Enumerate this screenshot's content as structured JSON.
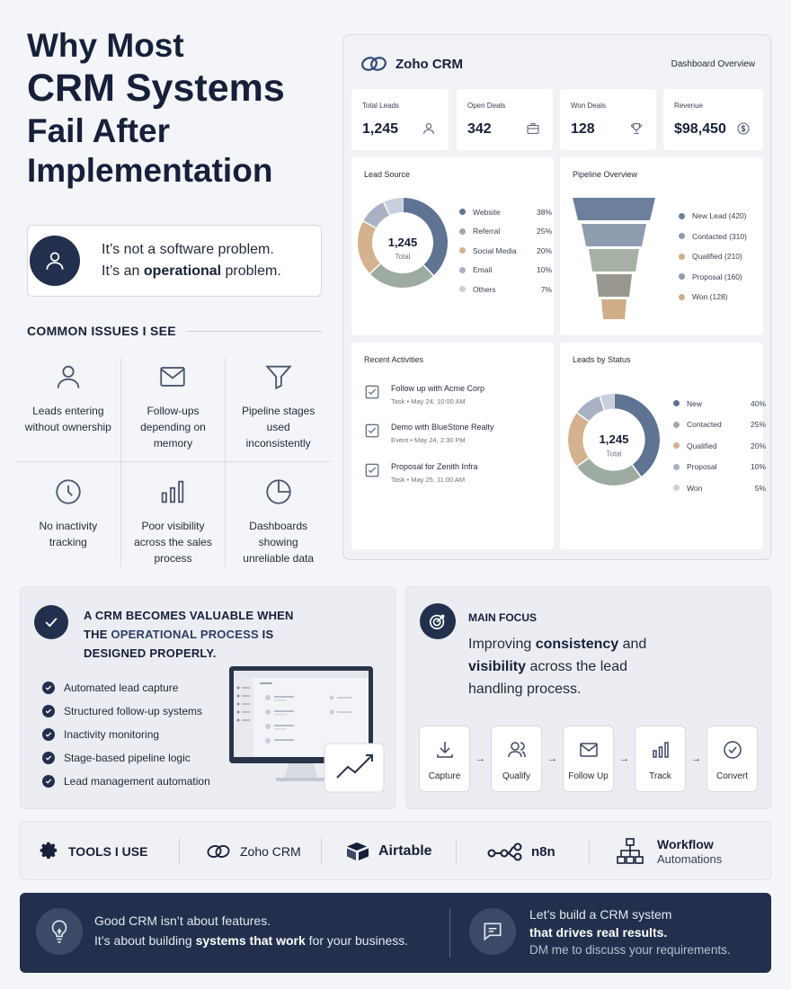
{
  "title": {
    "line1": "Why Most",
    "line2": "CRM Systems",
    "line3": "Fail After",
    "line4": "Implementation"
  },
  "problem": {
    "line1": "It’s not a software problem.",
    "line2_pre": "It’s an ",
    "line2_bold": "operational",
    "line2_post": " problem."
  },
  "issues": {
    "heading": "COMMON ISSUES I SEE",
    "items": [
      {
        "icon": "user-icon",
        "text1": "Leads entering",
        "text2": "without ownership",
        "text3": ""
      },
      {
        "icon": "mail-icon",
        "text1": "Follow-ups",
        "text2": "depending on",
        "text3": "memory"
      },
      {
        "icon": "funnel-icon",
        "text1": "Pipeline stages",
        "text2": "used",
        "text3": "inconsistently"
      },
      {
        "icon": "clock-icon",
        "text1": "No inactivity",
        "text2": "tracking",
        "text3": ""
      },
      {
        "icon": "bar-chart-icon",
        "text1": "Poor visibility",
        "text2": "across the sales",
        "text3": "process"
      },
      {
        "icon": "pie-chart-icon",
        "text1": "Dashboards",
        "text2": "showing",
        "text3": "unreliable data"
      }
    ]
  },
  "dashboard": {
    "brand": "Zoho CRM",
    "subtitle": "Dashboard Overview",
    "kpis": [
      {
        "label": "Total Leads",
        "value": "1,245",
        "icon": "user-icon"
      },
      {
        "label": "Open Deals",
        "value": "342",
        "icon": "briefcase-icon"
      },
      {
        "label": "Won Deals",
        "value": "128",
        "icon": "trophy-icon"
      },
      {
        "label": "Revenue",
        "value": "$98,450",
        "icon": "dollar-icon"
      }
    ],
    "lead_source": {
      "title": "Lead Source",
      "center_value": "1,245",
      "center_label": "Total",
      "items": [
        {
          "name": "Website",
          "pct": "38%",
          "value": 38,
          "color": "#5f7393"
        },
        {
          "name": "Referral",
          "pct": "25%",
          "value": 25,
          "color": "#9eaba1"
        },
        {
          "name": "Social Media",
          "pct": "20%",
          "value": 20,
          "color": "#d4b28e"
        },
        {
          "name": "Email",
          "pct": "10%",
          "value": 10,
          "color": "#a9b2c4"
        },
        {
          "name": "Others",
          "pct": "7%",
          "value": 7,
          "color": "#c9d0dd"
        }
      ]
    },
    "pipeline": {
      "title": "Pipeline Overview",
      "stages": [
        {
          "label": "New Lead (420)",
          "value": 420,
          "color": "#6d7f9b"
        },
        {
          "label": "Contacted (310)",
          "value": 310,
          "color": "#8e9caf"
        },
        {
          "label": "Qualified (210)",
          "value": 210,
          "color": "#a6b0a5"
        },
        {
          "label": "Proposal (160)",
          "value": 160,
          "color": "#9a9790"
        },
        {
          "label": "Won (128)",
          "value": 128,
          "color": "#d1ae89"
        }
      ]
    },
    "activities": {
      "title": "Recent Activities",
      "items": [
        {
          "title": "Follow up with Acme Corp",
          "meta": "Task  •  May 24, 10:00 AM"
        },
        {
          "title": "Demo with BlueStone Realty",
          "meta": "Event  •  May 24, 2:30 PM"
        },
        {
          "title": "Proposal for Zenith Infra",
          "meta": "Task  •  May 25, 11:00 AM"
        }
      ]
    },
    "status": {
      "title": "Leads by Status",
      "center_value": "1,245",
      "center_label": "Total",
      "items": [
        {
          "name": "New",
          "pct": "40%",
          "value": 40,
          "color": "#5f7393"
        },
        {
          "name": "Contacted",
          "pct": "25%",
          "value": 25,
          "color": "#9eaba1"
        },
        {
          "name": "Qualified",
          "pct": "20%",
          "value": 20,
          "color": "#d4b28e"
        },
        {
          "name": "Proposal",
          "pct": "10%",
          "value": 10,
          "color": "#a9b2c4"
        },
        {
          "name": "Won",
          "pct": "5%",
          "value": 5,
          "color": "#c9d0dd"
        }
      ]
    }
  },
  "valuable": {
    "head_line1": "A CRM BECOMES VALUABLE WHEN",
    "head_line2_pre": "THE ",
    "head_line2_accent": "OPERATIONAL PROCESS",
    "head_line2_post": " IS",
    "head_line3": "DESIGNED PROPERLY.",
    "checklist": [
      "Automated lead capture",
      "Structured follow-up systems",
      "Inactivity monitoring",
      "Stage-based pipeline logic",
      "Lead management automation"
    ]
  },
  "focus": {
    "label": "MAIN FOCUS",
    "text_pre": "Improving ",
    "text_b1": "consistency",
    "text_mid": " and",
    "text_b2": "visibility",
    "text_post": " across the lead",
    "text_line3": "handling process.",
    "steps": [
      {
        "label": "Capture",
        "icon": "download-icon"
      },
      {
        "label": "Qualify",
        "icon": "users-icon"
      },
      {
        "label": "Follow Up",
        "icon": "mail-icon"
      },
      {
        "label": "Track",
        "icon": "bar-chart-icon"
      },
      {
        "label": "Convert",
        "icon": "check-circle-icon"
      }
    ],
    "arrow": "→"
  },
  "tools": {
    "heading": "TOOLS I USE",
    "items": [
      {
        "name": "Zoho CRM",
        "icon": "zoho-logo-icon"
      },
      {
        "name": "Airtable",
        "icon": "airtable-logo-icon"
      },
      {
        "name": "n8n",
        "icon": "n8n-logo-icon"
      }
    ],
    "workflow_title": "Workflow",
    "workflow_sub": "Automations"
  },
  "footer": {
    "left_line1": "Good CRM isn’t about features.",
    "left_line2_pre": "It’s about building ",
    "left_line2_bold": "systems that work",
    "left_line2_post": " for your business.",
    "right_line1": "Let’s build a CRM system",
    "right_line2": "that drives real results.",
    "right_line3": "DM me to discuss your requirements."
  },
  "colors": {
    "navy": "#22304d",
    "text": "#16203a",
    "accent": "#2d3e66"
  }
}
